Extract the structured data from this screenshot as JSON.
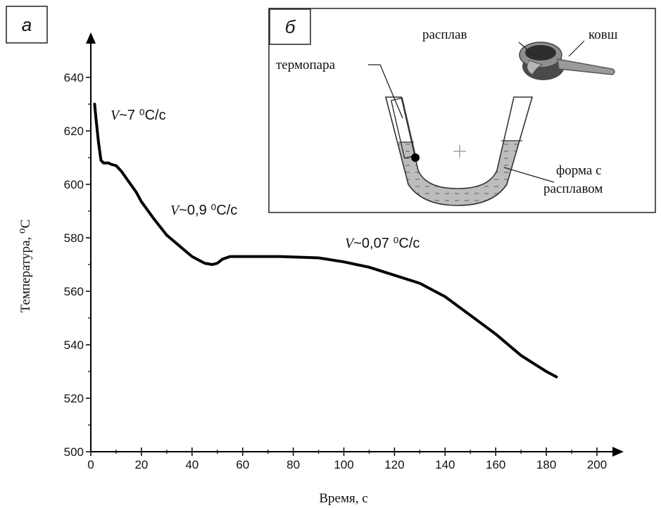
{
  "chart_data": {
    "type": "line",
    "xlabel": "Время, с",
    "ylabel": "Температура, ⁰С",
    "xlim": [
      0,
      200
    ],
    "ylim": [
      500,
      640
    ],
    "x_ticks": [
      0,
      20,
      40,
      60,
      80,
      100,
      120,
      140,
      160,
      180,
      200
    ],
    "y_ticks": [
      500,
      520,
      540,
      560,
      580,
      600,
      620,
      640
    ],
    "x_tick_labels": [
      "0",
      "20",
      "40",
      "60",
      "80",
      "100",
      "120",
      "140",
      "160",
      "180",
      "200"
    ],
    "y_tick_labels": [
      "500",
      "520",
      "540",
      "560",
      "580",
      "600",
      "620",
      "640"
    ],
    "grid": false,
    "series": [
      {
        "x": [
          1.5,
          2,
          3,
          4,
          5,
          6,
          7,
          8,
          10,
          12,
          15,
          18,
          20,
          25,
          30,
          35,
          40,
          45,
          48,
          50,
          52,
          55,
          58,
          65,
          75,
          90,
          100,
          110,
          120,
          130,
          140,
          150,
          160,
          170,
          180,
          184
        ],
        "y": [
          630,
          625,
          616,
          609,
          608,
          608,
          608,
          607.5,
          607,
          605,
          601,
          597,
          593.5,
          587,
          581,
          577,
          573,
          570.5,
          570,
          570.5,
          572,
          573,
          573,
          573,
          573,
          572.5,
          571,
          569,
          566,
          563,
          558,
          551,
          544,
          536,
          530,
          528
        ]
      }
    ],
    "annotations": [
      {
        "v": "V",
        "text": "~7 ⁰C/c"
      },
      {
        "v": "V",
        "text": "~0,9 ⁰C/c"
      },
      {
        "v": "V",
        "text": "~0,07 ⁰C/c"
      }
    ]
  },
  "panels": {
    "a_label": "а",
    "b_label": "б"
  },
  "inset": {
    "thermocouple_label": "термопара",
    "melt_label": "расплав",
    "ladle_label": "ковш",
    "mold_label_line1": "форма с",
    "mold_label_line2": "расплавом"
  }
}
